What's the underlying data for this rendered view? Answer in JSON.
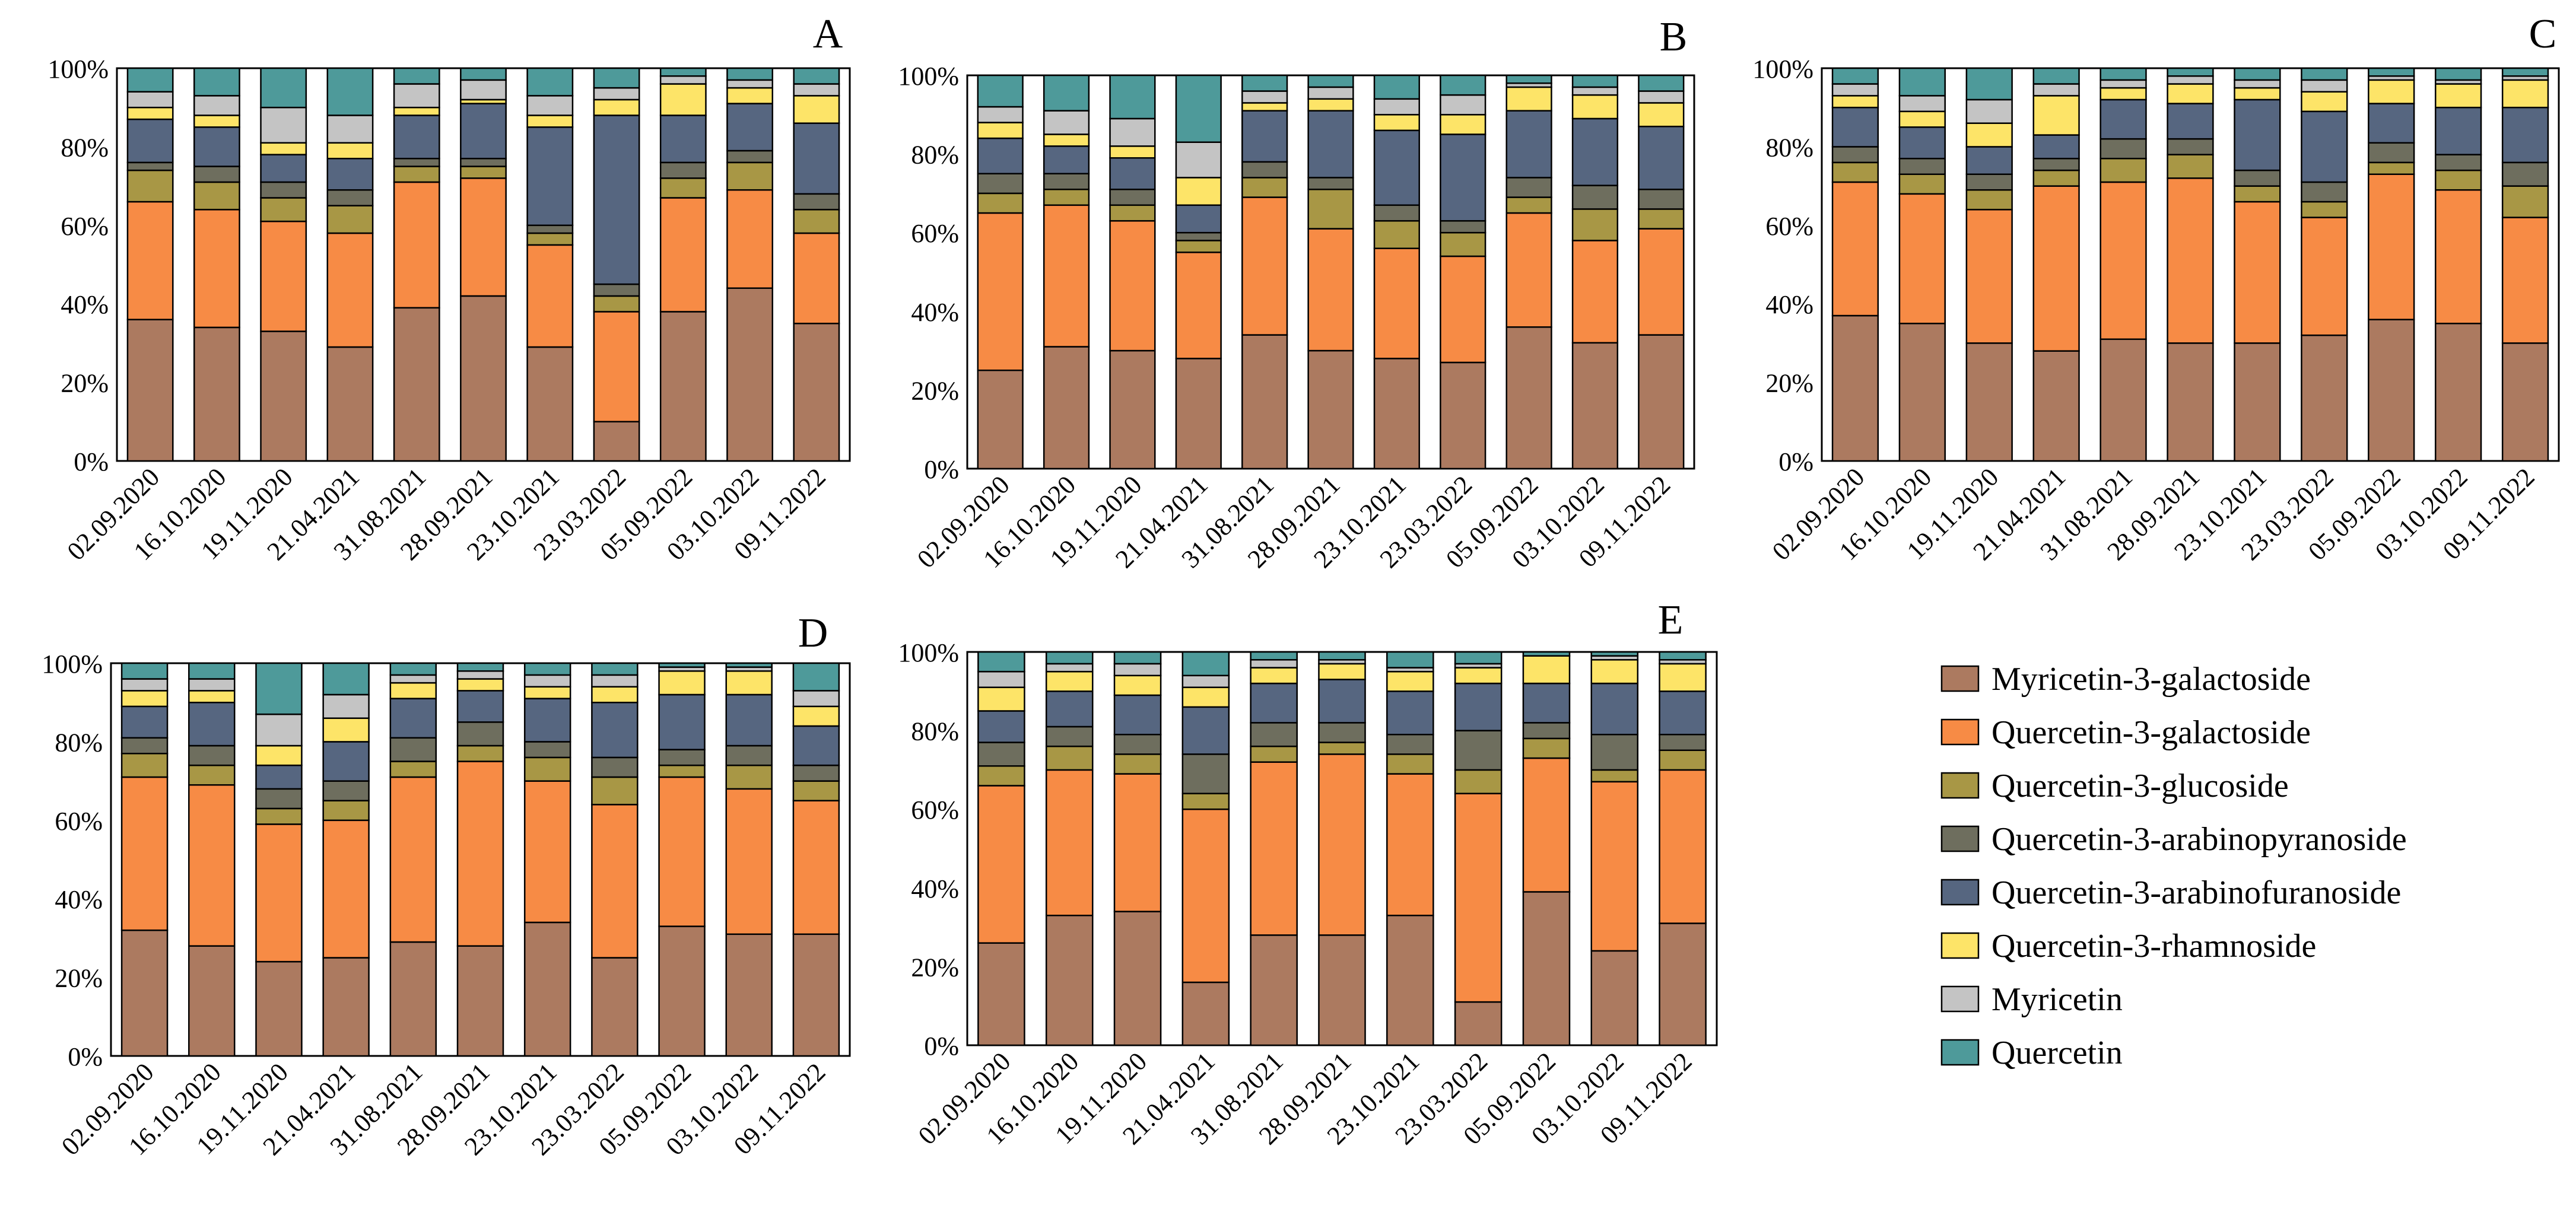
{
  "chart_data": {
    "type": "bar",
    "stacked": "percent",
    "categories": [
      "02.09.2020",
      "16.10.2020",
      "19.11.2020",
      "21.04.2021",
      "31.08.2021",
      "28.09.2021",
      "23.10.2021",
      "23.03.2022",
      "05.09.2022",
      "03.10.2022",
      "09.11.2022"
    ],
    "yticks": [
      "0%",
      "20%",
      "40%",
      "60%",
      "80%",
      "100%"
    ],
    "ylim": [
      0,
      100
    ],
    "legend_position": "right",
    "series": [
      {
        "name": "Myricetin-3-galactoside",
        "color": "#ac7a60"
      },
      {
        "name": "Quercetin-3-galactoside",
        "color": "#f78b45"
      },
      {
        "name": "Quercetin-3-glucoside",
        "color": "#a89745"
      },
      {
        "name": "Quercetin-3-arabinopyranoside",
        "color": "#6e6e5e"
      },
      {
        "name": "Quercetin-3-arabinofuranoside",
        "color": "#566680"
      },
      {
        "name": "Quercetin-3-rhamnoside",
        "color": "#fde468"
      },
      {
        "name": "Myricetin",
        "color": "#c4c4c4"
      },
      {
        "name": "Quercetin",
        "color": "#4e9a9a"
      }
    ],
    "panels": [
      {
        "label": "A",
        "values": [
          [
            36,
            30,
            8,
            2,
            11,
            3,
            4,
            6
          ],
          [
            34,
            30,
            7,
            4,
            10,
            3,
            5,
            7
          ],
          [
            33,
            28,
            6,
            4,
            7,
            3,
            9,
            10
          ],
          [
            29,
            29,
            7,
            4,
            8,
            4,
            7,
            12
          ],
          [
            39,
            32,
            4,
            2,
            11,
            2,
            6,
            4
          ],
          [
            42,
            30,
            3,
            2,
            14,
            1,
            5,
            3
          ],
          [
            29,
            26,
            3,
            2,
            25,
            3,
            5,
            7
          ],
          [
            10,
            28,
            4,
            3,
            43,
            4,
            3,
            5
          ],
          [
            38,
            29,
            5,
            4,
            12,
            8,
            2,
            2
          ],
          [
            44,
            25,
            7,
            3,
            12,
            4,
            2,
            3
          ],
          [
            35,
            23,
            6,
            4,
            18,
            7,
            3,
            4
          ]
        ]
      },
      {
        "label": "B",
        "values": [
          [
            25,
            40,
            5,
            5,
            9,
            4,
            4,
            8
          ],
          [
            31,
            36,
            4,
            4,
            7,
            3,
            6,
            9
          ],
          [
            30,
            33,
            4,
            4,
            8,
            3,
            7,
            11
          ],
          [
            28,
            27,
            3,
            2,
            7,
            7,
            9,
            17
          ],
          [
            34,
            35,
            5,
            4,
            13,
            2,
            3,
            4
          ],
          [
            30,
            31,
            10,
            3,
            17,
            3,
            3,
            3
          ],
          [
            28,
            28,
            7,
            4,
            19,
            4,
            4,
            6
          ],
          [
            27,
            27,
            6,
            3,
            22,
            5,
            5,
            5
          ],
          [
            36,
            29,
            4,
            5,
            17,
            6,
            1,
            2
          ],
          [
            32,
            26,
            8,
            6,
            17,
            6,
            2,
            3
          ],
          [
            34,
            27,
            5,
            5,
            16,
            6,
            3,
            4
          ]
        ]
      },
      {
        "label": "C",
        "values": [
          [
            37,
            34,
            5,
            4,
            10,
            3,
            3,
            4
          ],
          [
            35,
            33,
            5,
            4,
            8,
            4,
            4,
            7
          ],
          [
            30,
            34,
            5,
            4,
            7,
            6,
            6,
            8
          ],
          [
            28,
            42,
            4,
            3,
            6,
            10,
            3,
            4
          ],
          [
            31,
            40,
            6,
            5,
            10,
            3,
            2,
            3
          ],
          [
            30,
            42,
            6,
            4,
            9,
            5,
            2,
            2
          ],
          [
            30,
            36,
            4,
            4,
            18,
            3,
            2,
            3
          ],
          [
            32,
            30,
            4,
            5,
            18,
            5,
            3,
            3
          ],
          [
            36,
            37,
            3,
            5,
            10,
            6,
            1,
            2
          ],
          [
            35,
            34,
            5,
            4,
            12,
            6,
            1,
            3
          ],
          [
            30,
            32,
            8,
            6,
            14,
            7,
            1,
            2
          ]
        ]
      },
      {
        "label": "D",
        "values": [
          [
            32,
            39,
            6,
            4,
            8,
            4,
            3,
            4
          ],
          [
            28,
            41,
            5,
            5,
            11,
            3,
            3,
            4
          ],
          [
            24,
            35,
            4,
            5,
            6,
            5,
            8,
            13
          ],
          [
            25,
            35,
            5,
            5,
            10,
            6,
            6,
            8
          ],
          [
            29,
            42,
            4,
            6,
            10,
            4,
            2,
            3
          ],
          [
            28,
            47,
            4,
            6,
            8,
            3,
            2,
            2
          ],
          [
            34,
            36,
            6,
            4,
            11,
            3,
            3,
            3
          ],
          [
            25,
            39,
            7,
            5,
            14,
            4,
            3,
            3
          ],
          [
            33,
            38,
            3,
            4,
            14,
            6,
            1,
            1
          ],
          [
            31,
            37,
            6,
            5,
            13,
            6,
            1,
            1
          ],
          [
            31,
            34,
            5,
            4,
            10,
            5,
            4,
            7
          ]
        ]
      },
      {
        "label": "E",
        "values": [
          [
            26,
            40,
            5,
            6,
            8,
            6,
            4,
            5
          ],
          [
            33,
            37,
            6,
            5,
            9,
            5,
            2,
            3
          ],
          [
            34,
            35,
            5,
            5,
            10,
            5,
            3,
            3
          ],
          [
            16,
            44,
            4,
            10,
            12,
            5,
            3,
            6
          ],
          [
            28,
            44,
            4,
            6,
            10,
            4,
            2,
            2
          ],
          [
            28,
            46,
            3,
            5,
            11,
            4,
            1,
            2
          ],
          [
            33,
            36,
            5,
            5,
            11,
            5,
            1,
            4
          ],
          [
            11,
            53,
            6,
            10,
            12,
            4,
            1,
            3
          ],
          [
            39,
            34,
            5,
            4,
            10,
            7,
            0,
            1
          ],
          [
            24,
            43,
            3,
            9,
            13,
            6,
            1,
            1
          ],
          [
            31,
            39,
            5,
            4,
            11,
            7,
            1,
            2
          ]
        ]
      }
    ]
  }
}
